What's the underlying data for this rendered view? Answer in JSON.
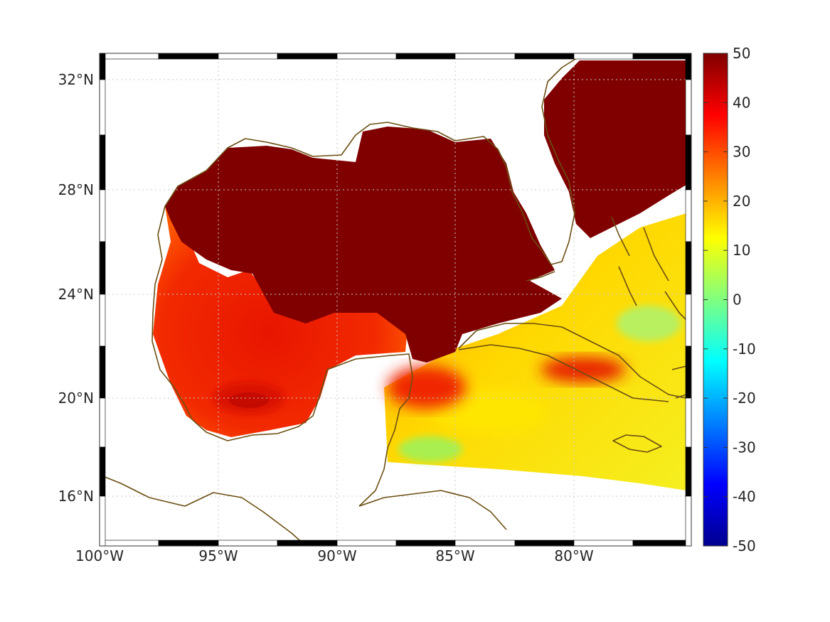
{
  "map": {
    "longitude_ticks": [
      "100°W",
      "95°W",
      "90°W",
      "85°W",
      "80°W"
    ],
    "latitude_ticks": [
      "32°N",
      "28°N",
      "24°N",
      "20°N",
      "16°N"
    ],
    "extent": {
      "lon_min": -100,
      "lon_max": -75,
      "lat_min": 14.3,
      "lat_max": 33
    },
    "grid": "dotted",
    "frame": "black-white checkered border",
    "coastline_color": "#6b4e12",
    "land_color": "#ffffff"
  },
  "colorbar": {
    "ticks": [
      "50",
      "40",
      "30",
      "20",
      "10",
      "0",
      "-10",
      "-20",
      "-30",
      "-40",
      "-50"
    ],
    "range": [
      -50,
      50
    ],
    "colormap": "jet",
    "colors": [
      "#00008f",
      "#0000ff",
      "#0080ff",
      "#00ffff",
      "#80ff80",
      "#ffff00",
      "#ff8000",
      "#ff0000",
      "#800000"
    ]
  },
  "field": {
    "dominant_value_gulf": 50,
    "saturated_color": "#800000",
    "regions": [
      {
        "area": "Northern and central Gulf of Mexico, Atlantic off Florida",
        "value": 50
      },
      {
        "area": "Western and southern Gulf of Mexico",
        "value": 38
      },
      {
        "area": "Bay of Campeche eddy",
        "value": 48
      },
      {
        "area": "Straits of Florida / Bahamas",
        "value": 15
      },
      {
        "area": "Northwest Caribbean",
        "value": 15
      },
      {
        "area": "Near Cozumel / Honduras shelf",
        "value": 8
      }
    ]
  }
}
